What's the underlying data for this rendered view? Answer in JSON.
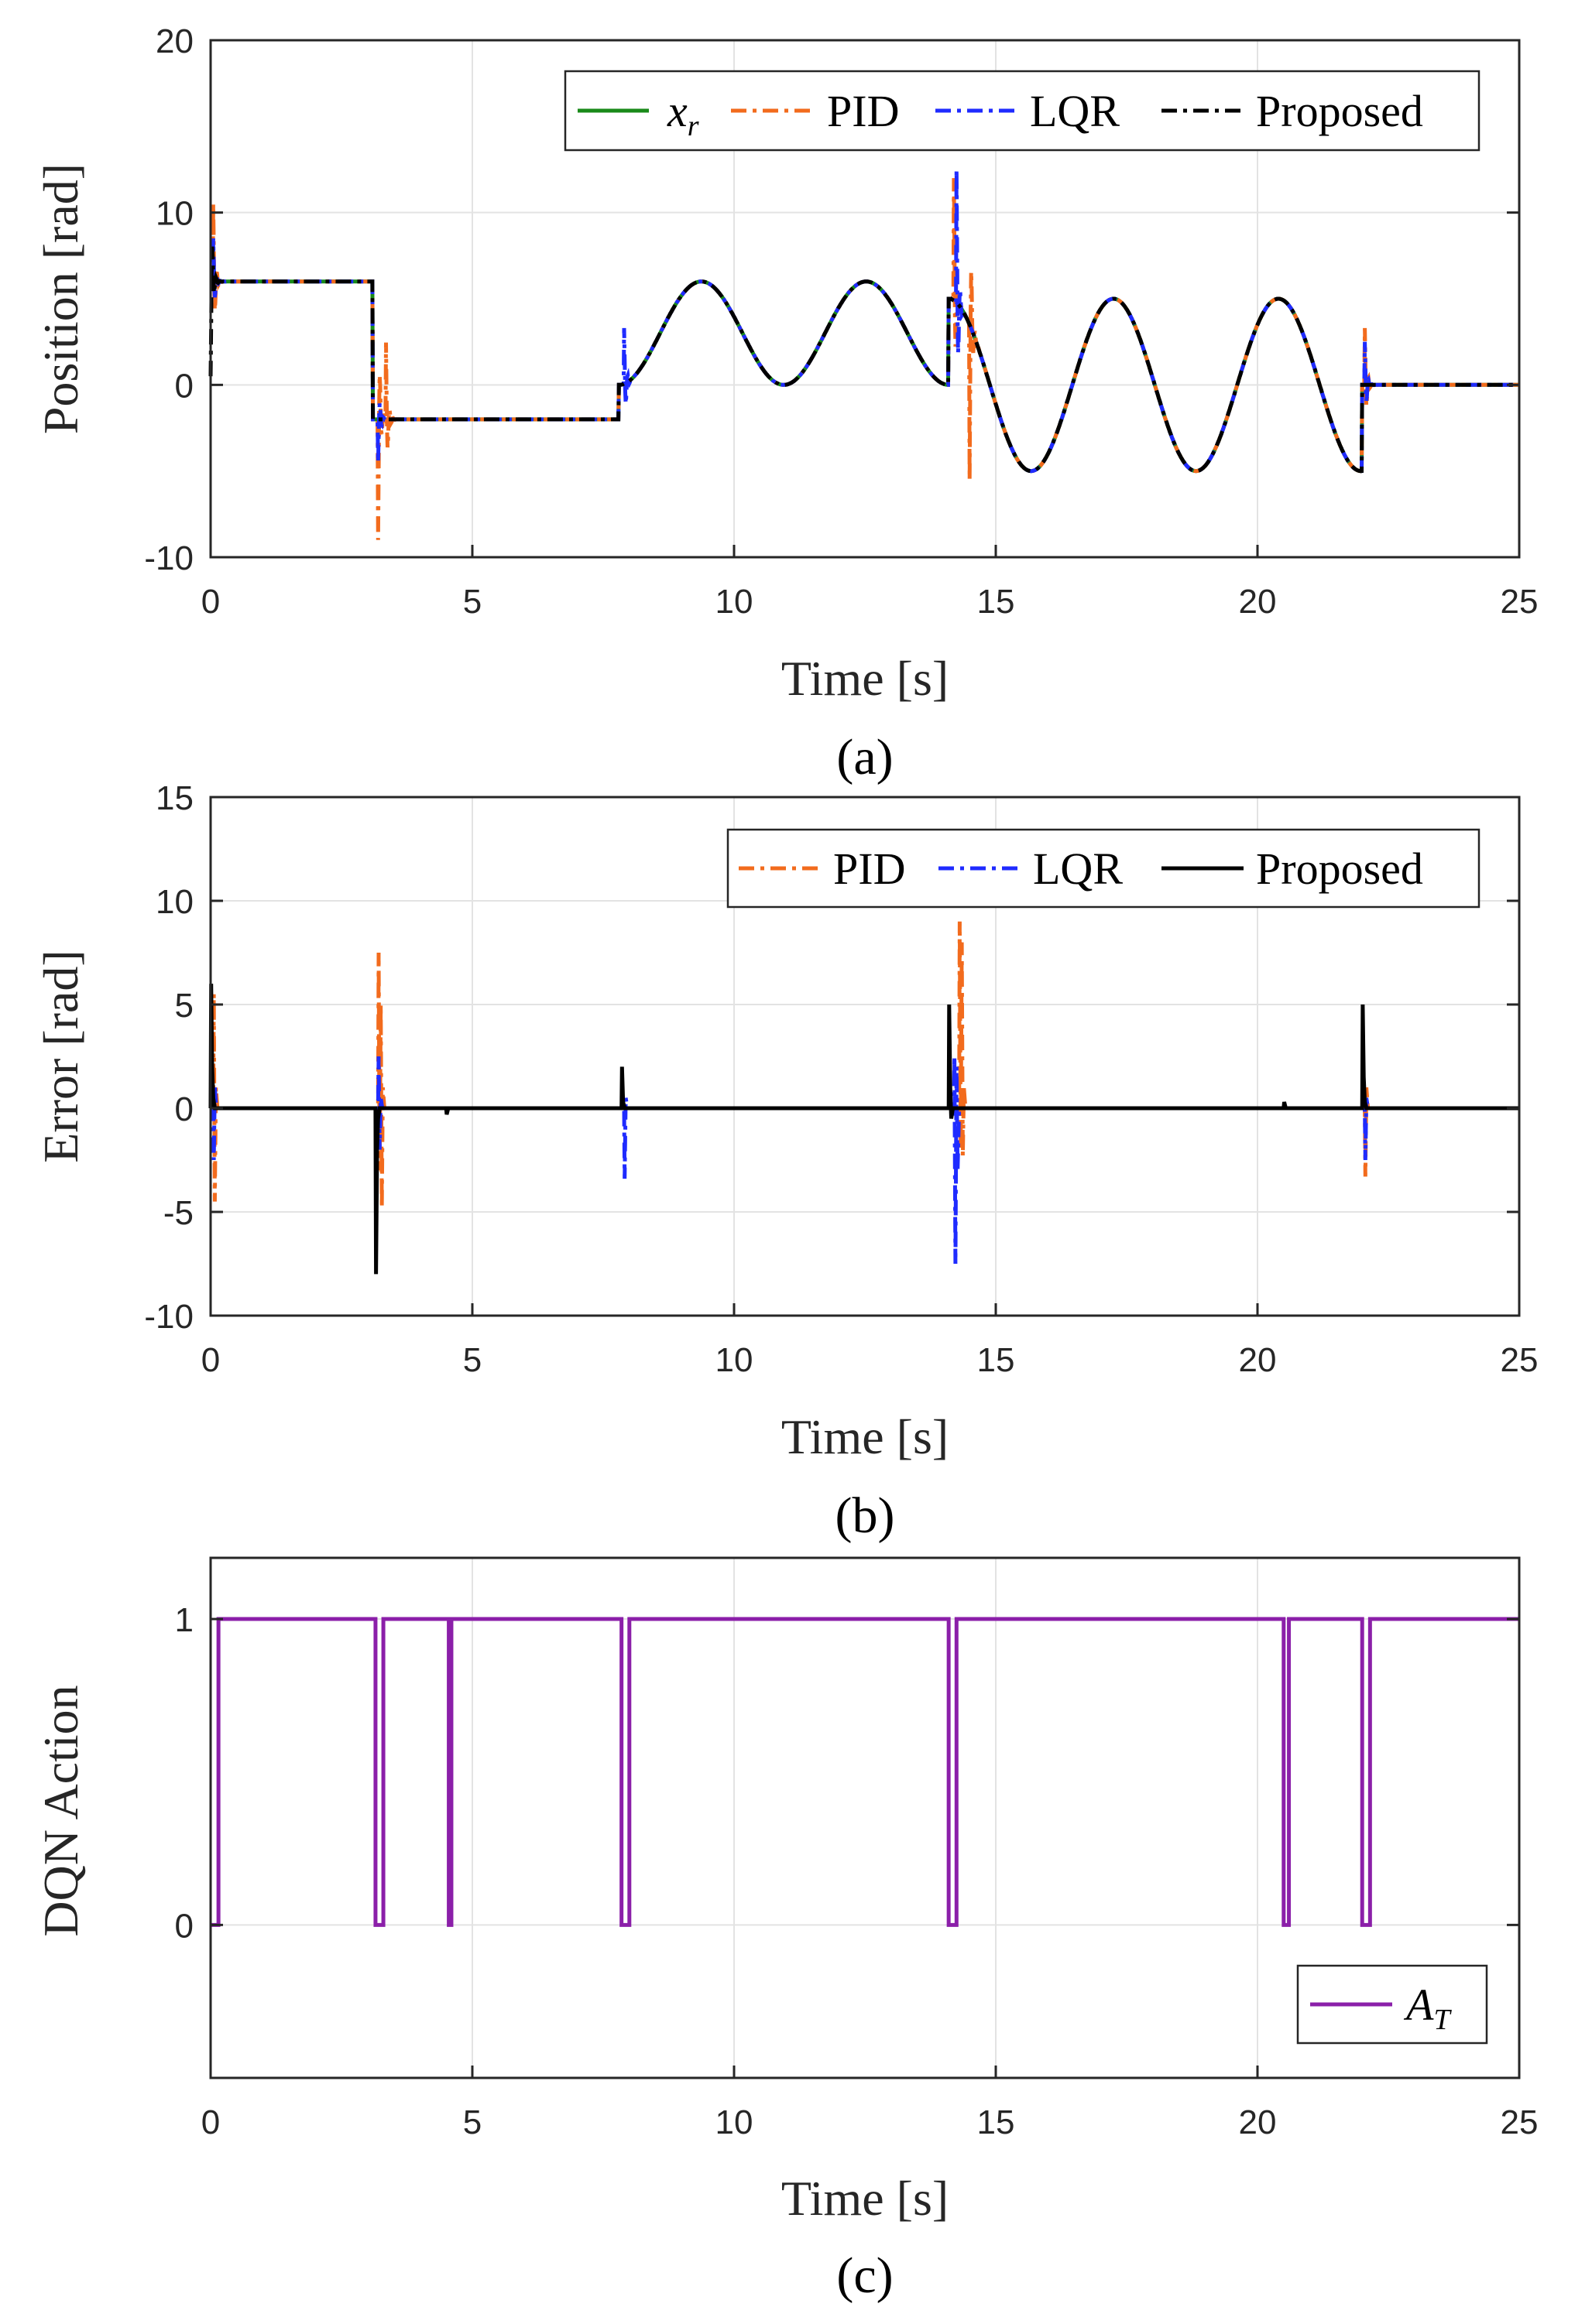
{
  "chart_data": [
    {
      "type": "line",
      "panel": "a",
      "caption": "(a)",
      "xlabel": "Time [s]",
      "ylabel": "Position [rad]",
      "xlim": [
        0,
        25
      ],
      "ylim": [
        -10,
        20
      ],
      "xticks": [
        "0",
        "5",
        "10",
        "15",
        "20",
        "25"
      ],
      "yticks": [
        "-10",
        "0",
        "10",
        "20"
      ],
      "grid": true,
      "legend_position": "top-right",
      "legend": [
        {
          "label": "x",
          "sub": "r",
          "color": "#1a8a1a",
          "style": "solid"
        },
        {
          "label": "PID",
          "color": "#f26b1d",
          "style": "dashdot"
        },
        {
          "label": "LQR",
          "color": "#1f2bff",
          "style": "dashdot"
        },
        {
          "label": "Proposed",
          "color": "#000000",
          "style": "dashdot"
        }
      ],
      "reference_segments": [
        {
          "t_start": 0,
          "t_end": 3.1,
          "shape": "constant",
          "value": 6
        },
        {
          "t_start": 3.1,
          "t_end": 7.8,
          "shape": "constant",
          "value": -2
        },
        {
          "t_start": 7.8,
          "t_end": 14.1,
          "shape": "sine",
          "mean": 3,
          "amplitude": 3,
          "period": 3.15,
          "phase_start": 0
        },
        {
          "t_start": 14.1,
          "t_end": 22.0,
          "shape": "sine",
          "mean": 0,
          "amplitude": 5,
          "period": 3.15,
          "phase_start": 0
        },
        {
          "t_start": 22.0,
          "t_end": 25,
          "shape": "constant",
          "value": 0
        }
      ],
      "transients": [
        {
          "series": "PID",
          "t": 0.05,
          "peak": 10.5
        },
        {
          "series": "PID",
          "t": 3.2,
          "peak": -9
        },
        {
          "series": "PID",
          "t": 3.35,
          "peak": 2.5
        },
        {
          "series": "PID",
          "t": 14.2,
          "peak": 12
        },
        {
          "series": "PID",
          "t": 14.5,
          "peak": -5.5
        },
        {
          "series": "PID",
          "t": 22.05,
          "peak": 3.3
        },
        {
          "series": "LQR",
          "t": 0.05,
          "peak": 8.5
        },
        {
          "series": "LQR",
          "t": 3.2,
          "peak": -4.5
        },
        {
          "series": "LQR",
          "t": 7.9,
          "peak": 3.3
        },
        {
          "series": "LQR",
          "t": 14.25,
          "peak": 12.5
        },
        {
          "series": "LQR",
          "t": 22.05,
          "peak": 2.5
        },
        {
          "series": "Proposed",
          "t": 0.0,
          "peak": 0.5
        },
        {
          "series": "Proposed",
          "t": 14.15,
          "peak": 5
        }
      ]
    },
    {
      "type": "line",
      "panel": "b",
      "caption": "(b)",
      "xlabel": "Time [s]",
      "ylabel": "Error [rad]",
      "xlim": [
        0,
        25
      ],
      "ylim": [
        -10,
        15
      ],
      "xticks": [
        "0",
        "5",
        "10",
        "15",
        "20",
        "25"
      ],
      "yticks": [
        "-10",
        "-5",
        "0",
        "5",
        "10",
        "15"
      ],
      "grid": true,
      "legend_position": "top-right",
      "legend": [
        {
          "label": "PID",
          "color": "#f26b1d",
          "style": "dashdot"
        },
        {
          "label": "LQR",
          "color": "#1f2bff",
          "style": "dashdot"
        },
        {
          "label": "Proposed",
          "color": "#000000",
          "style": "solid"
        }
      ],
      "spikes": [
        {
          "series": "PID",
          "t": 0.05,
          "values": [
            5.5,
            -4.5,
            1
          ]
        },
        {
          "series": "PID",
          "t": 3.2,
          "values": [
            7.5,
            -3,
            5,
            -4.8,
            1
          ]
        },
        {
          "series": "PID",
          "t": 14.3,
          "values": [
            9,
            -2,
            8,
            -2.3,
            1
          ]
        },
        {
          "series": "PID",
          "t": 22.05,
          "values": [
            -3.3,
            1
          ]
        },
        {
          "series": "LQR",
          "t": 0.05,
          "values": [
            -2.5,
            1
          ]
        },
        {
          "series": "LQR",
          "t": 3.2,
          "values": [
            2.5,
            -2,
            0.5
          ]
        },
        {
          "series": "LQR",
          "t": 7.9,
          "values": [
            -3.4,
            0.5
          ]
        },
        {
          "series": "LQR",
          "t": 14.2,
          "values": [
            2.5,
            -7.5,
            2,
            -3
          ]
        },
        {
          "series": "LQR",
          "t": 22.05,
          "values": [
            -2.5,
            0.5
          ]
        },
        {
          "series": "Proposed",
          "t": 0.0,
          "values": [
            6,
            2,
            0.5
          ]
        },
        {
          "series": "Proposed",
          "t": 3.15,
          "values": [
            -8,
            -2,
            -0.5
          ]
        },
        {
          "series": "Proposed",
          "t": 4.5,
          "values": [
            -0.3
          ]
        },
        {
          "series": "Proposed",
          "t": 7.85,
          "values": [
            2,
            0.3
          ]
        },
        {
          "series": "Proposed",
          "t": 14.1,
          "values": [
            5,
            1,
            -0.5
          ]
        },
        {
          "series": "Proposed",
          "t": 20.5,
          "values": [
            0.3
          ]
        },
        {
          "series": "Proposed",
          "t": 22.0,
          "values": [
            5,
            1.5,
            0.3
          ]
        }
      ]
    },
    {
      "type": "line",
      "panel": "c",
      "caption": "(c)",
      "xlabel": "Time [s]",
      "ylabel": "DQN Action",
      "xlim": [
        0,
        25
      ],
      "ylim": [
        -0.5,
        1.2
      ],
      "xticks": [
        "0",
        "5",
        "10",
        "15",
        "20",
        "25"
      ],
      "yticks": [
        "0",
        "1"
      ],
      "grid": true,
      "legend_position": "bottom-right",
      "legend": [
        {
          "label": "A",
          "sub": "T",
          "color": "#8b1fa9",
          "style": "solid"
        }
      ],
      "action_zero_intervals": [
        [
          0,
          0.15
        ],
        [
          3.15,
          3.3
        ],
        [
          4.55,
          4.6
        ],
        [
          7.85,
          8.0
        ],
        [
          14.1,
          14.25
        ],
        [
          20.5,
          20.6
        ],
        [
          22.0,
          22.15
        ]
      ]
    }
  ]
}
